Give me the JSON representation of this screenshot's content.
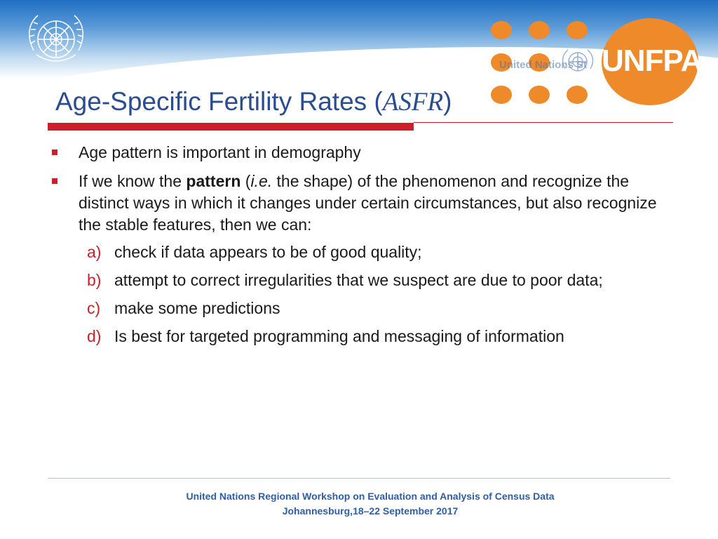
{
  "header": {
    "org_watermark": "United Nations St",
    "logo_text": "UNFPA",
    "colors": {
      "accent_orange": "#ef8a2a",
      "band_blue": "#1f6fc2",
      "title_blue": "#2a4d8f",
      "rule_red": "#cc1f2a"
    },
    "icons": [
      "un-emblem-icon",
      "unfpa-logo-icon"
    ]
  },
  "title": {
    "prefix": "Age-Specific Fertility Rates (",
    "abbr": "ASFR",
    "suffix": ")"
  },
  "bullets": {
    "b1": "Age pattern is important in demography",
    "b2": {
      "pre": "If we know the ",
      "bold": "pattern",
      "mid": " (",
      "ital": "i.e.",
      "post": " the shape) of the phenomenon and recognize the distinct ways in which it changes under certain circumstances, but also recognize the stable features, then we can:"
    }
  },
  "subitems": [
    {
      "letter": "a)",
      "text": "check if data appears to be of good quality;"
    },
    {
      "letter": "b)",
      "text": "attempt to correct irregularities that we suspect are due to poor data;"
    },
    {
      "letter": "c)",
      "text": "make some predictions"
    },
    {
      "letter": "d)",
      "text": "Is best for targeted programming and messaging of information"
    }
  ],
  "footer": {
    "line1": "United Nations Regional Workshop on Evaluation and Analysis of Census Data",
    "line2": "Johannesburg,18–22 September 2017"
  }
}
